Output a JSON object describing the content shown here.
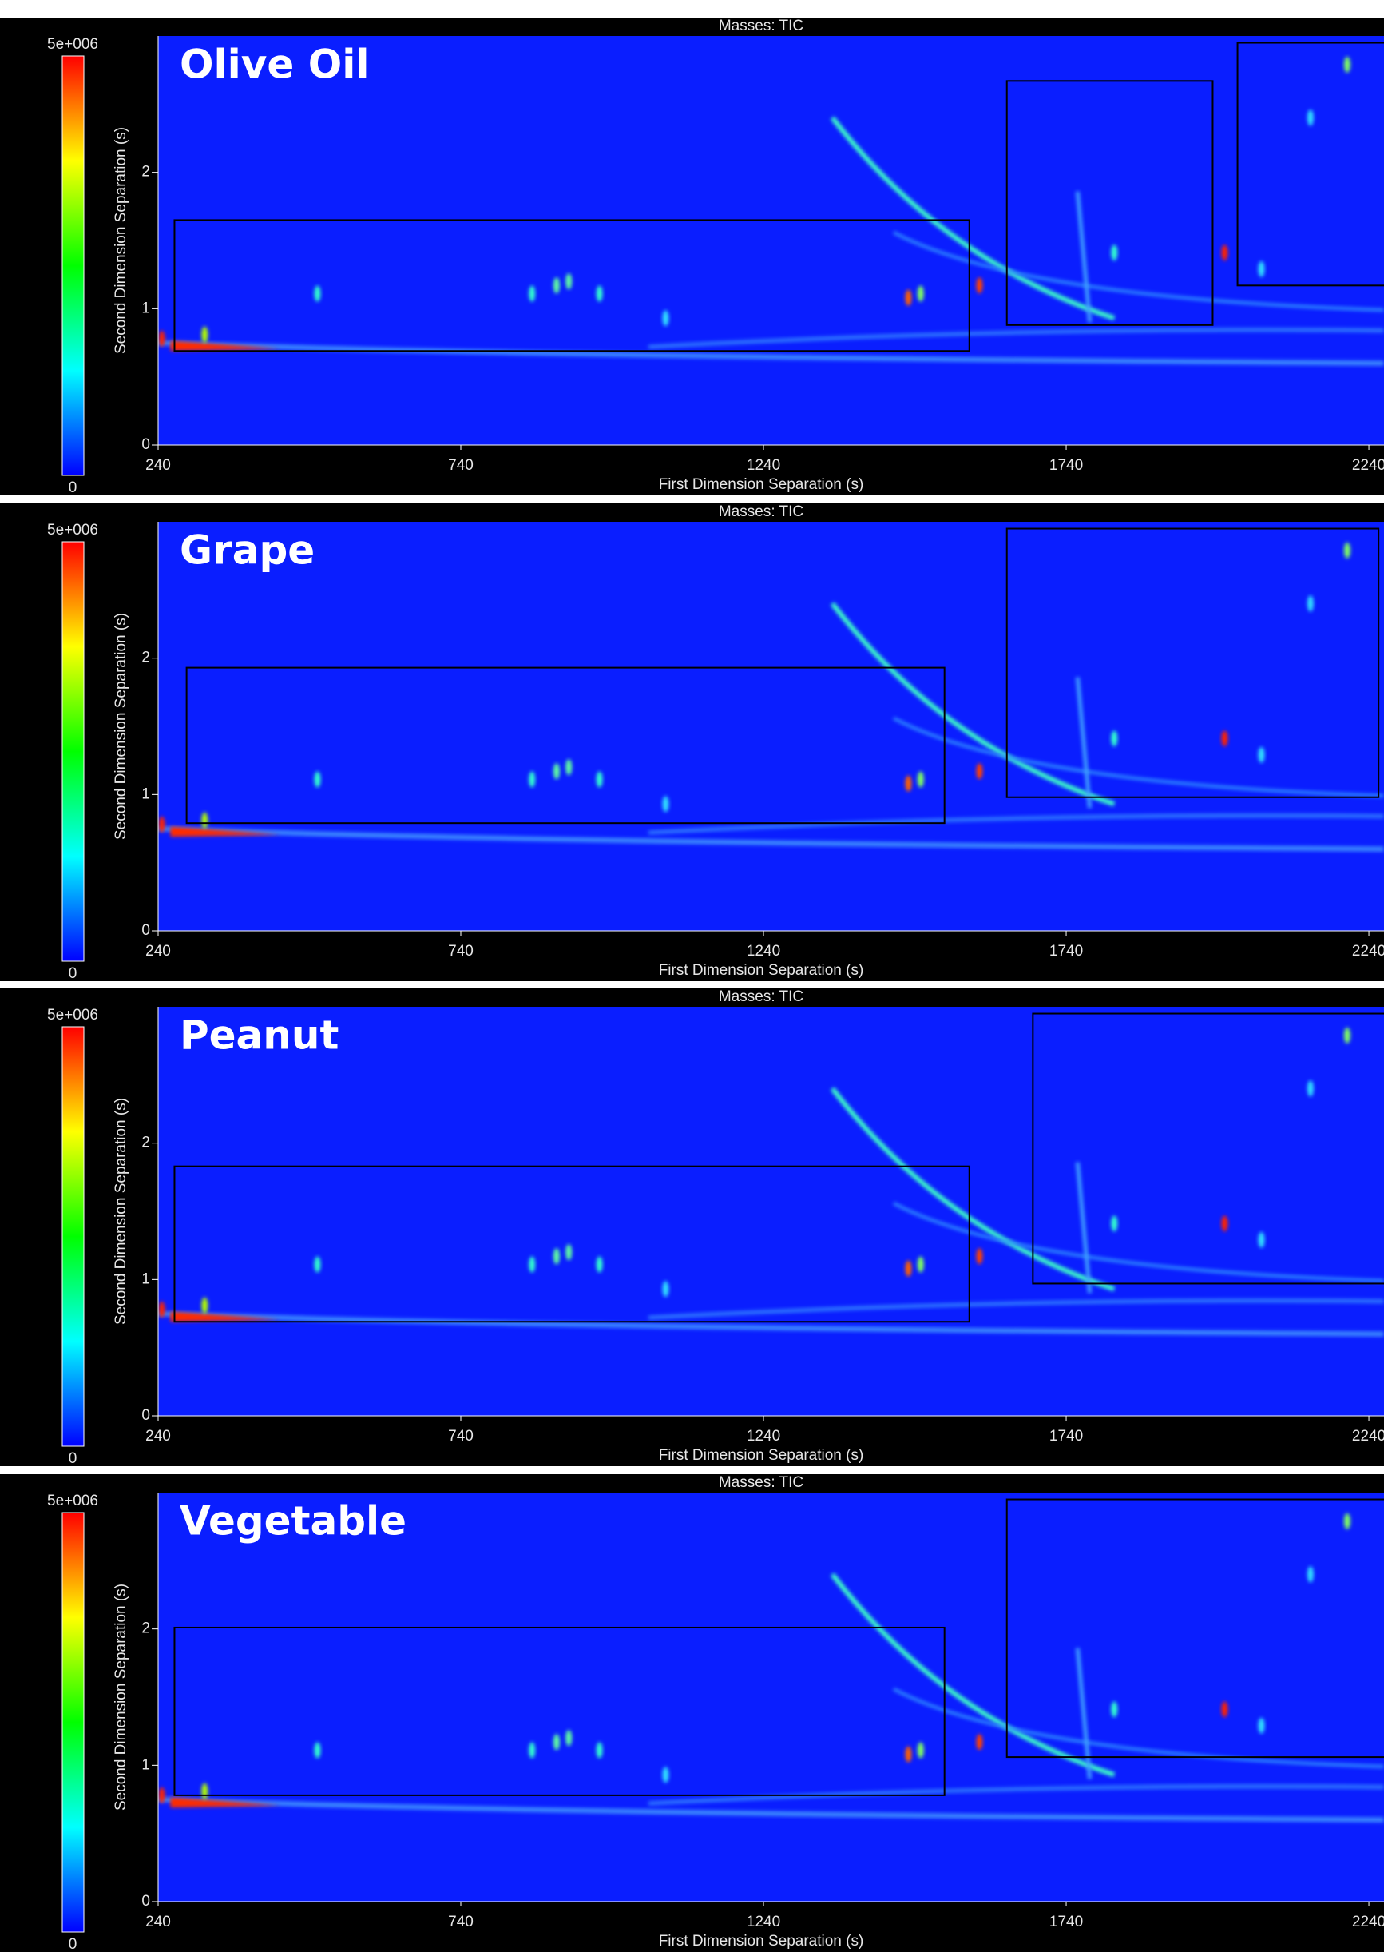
{
  "chart_data": [
    {
      "type": "heatmap",
      "title": "Masses: TIC",
      "panel_label": "Olive Oil",
      "xlabel": "First Dimension Separation (s)",
      "ylabel": "Second Dimension Separation (s)",
      "xlim": [
        240,
        2265
      ],
      "ylim": [
        0,
        3
      ],
      "xticks": [
        240,
        740,
        1240,
        1740,
        2240
      ],
      "yticks": [
        0,
        1,
        2
      ],
      "clim": [
        0,
        5000000
      ],
      "colorbar_ticks": [
        0,
        {
          "value": 5000000,
          "label": "5e+006"
        }
      ],
      "colormap": [
        "#0000ff",
        "#00ffff",
        "#00ff00",
        "#ffff00",
        "#ff0000"
      ],
      "background": "#0a1eff",
      "regions": [
        {
          "x": [
            267,
            1580
          ],
          "y": [
            0.69,
            1.65
          ]
        },
        {
          "x": [
            1642,
            1982
          ],
          "y": [
            0.88,
            2.67
          ]
        },
        {
          "x": [
            2023,
            2280
          ],
          "y": [
            1.17,
            2.95
          ]
        }
      ]
    },
    {
      "type": "heatmap",
      "title": "Masses: TIC",
      "panel_label": "Grape",
      "xlabel": "First Dimension Separation (s)",
      "ylabel": "Second Dimension Separation (s)",
      "xlim": [
        240,
        2265
      ],
      "ylim": [
        0,
        3
      ],
      "xticks": [
        240,
        740,
        1240,
        1740,
        2240
      ],
      "yticks": [
        0,
        1,
        2
      ],
      "clim": [
        0,
        5000000
      ],
      "colorbar_ticks": [
        0,
        {
          "value": 5000000,
          "label": "5e+006"
        }
      ],
      "colormap": [
        "#0000ff",
        "#00ffff",
        "#00ff00",
        "#ffff00",
        "#ff0000"
      ],
      "background": "#0a1eff",
      "regions": [
        {
          "x": [
            287,
            1539
          ],
          "y": [
            0.79,
            1.93
          ]
        },
        {
          "x": [
            1642,
            2256
          ],
          "y": [
            0.98,
            2.95
          ]
        }
      ]
    },
    {
      "type": "heatmap",
      "title": "Masses: TIC",
      "panel_label": "Peanut",
      "xlabel": "First Dimension Separation (s)",
      "ylabel": "Second Dimension Separation (s)",
      "xlim": [
        240,
        2265
      ],
      "ylim": [
        0,
        3
      ],
      "xticks": [
        240,
        740,
        1240,
        1740,
        2240
      ],
      "yticks": [
        0,
        1,
        2
      ],
      "clim": [
        0,
        5000000
      ],
      "colorbar_ticks": [
        0,
        {
          "value": 5000000,
          "label": "5e+006"
        }
      ],
      "colormap": [
        "#0000ff",
        "#00ffff",
        "#00ff00",
        "#ffff00",
        "#ff0000"
      ],
      "background": "#0a1eff",
      "regions": [
        {
          "x": [
            267,
            1580
          ],
          "y": [
            0.69,
            1.83
          ]
        },
        {
          "x": [
            1685,
            2280
          ],
          "y": [
            0.97,
            2.95
          ]
        }
      ]
    },
    {
      "type": "heatmap",
      "title": "Masses: TIC",
      "panel_label": "Vegetable",
      "xlabel": "First Dimension Separation (s)",
      "ylabel": "Second Dimension Separation (s)",
      "xlim": [
        240,
        2265
      ],
      "ylim": [
        0,
        3
      ],
      "xticks": [
        240,
        740,
        1240,
        1740,
        2240
      ],
      "yticks": [
        0,
        1,
        2
      ],
      "clim": [
        0,
        5000000
      ],
      "colorbar_ticks": [
        0,
        {
          "value": 5000000,
          "label": "5e+006"
        }
      ],
      "colormap": [
        "#0000ff",
        "#00ffff",
        "#00ff00",
        "#ffff00",
        "#ff0000"
      ],
      "background": "#0a1eff",
      "regions": [
        {
          "x": [
            267,
            1539
          ],
          "y": [
            0.78,
            2.01
          ]
        },
        {
          "x": [
            1642,
            2280
          ],
          "y": [
            1.06,
            2.95
          ]
        }
      ]
    }
  ]
}
